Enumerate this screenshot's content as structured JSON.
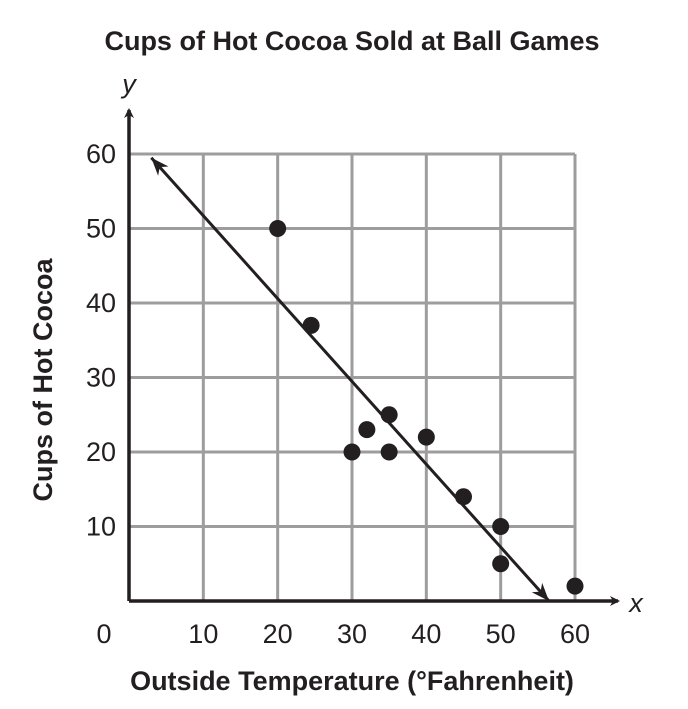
{
  "chart_data": {
    "type": "scatter",
    "title": "Cups of Hot Cocoa Sold at Ball Games",
    "xlabel": "Outside Temperature (°Fahrenheit)",
    "ylabel": "Cups of Hot Cocoa",
    "x_var": "x",
    "y_var": "y",
    "xlim": [
      0,
      60
    ],
    "ylim": [
      0,
      60
    ],
    "x_ticks": [
      "0",
      "10",
      "20",
      "30",
      "40",
      "50",
      "60"
    ],
    "y_ticks": [
      "10",
      "20",
      "30",
      "40",
      "50",
      "60"
    ],
    "grid": true,
    "points": [
      {
        "x": 20,
        "y": 50
      },
      {
        "x": 24.5,
        "y": 37
      },
      {
        "x": 30,
        "y": 20
      },
      {
        "x": 32,
        "y": 23
      },
      {
        "x": 35,
        "y": 25
      },
      {
        "x": 35,
        "y": 20
      },
      {
        "x": 40,
        "y": 22
      },
      {
        "x": 45,
        "y": 14
      },
      {
        "x": 50,
        "y": 10
      },
      {
        "x": 50,
        "y": 5
      },
      {
        "x": 60,
        "y": 2
      }
    ],
    "trend_line": {
      "x1": 3,
      "y1": 59.5,
      "x2": 56.5,
      "y2": 0
    }
  }
}
